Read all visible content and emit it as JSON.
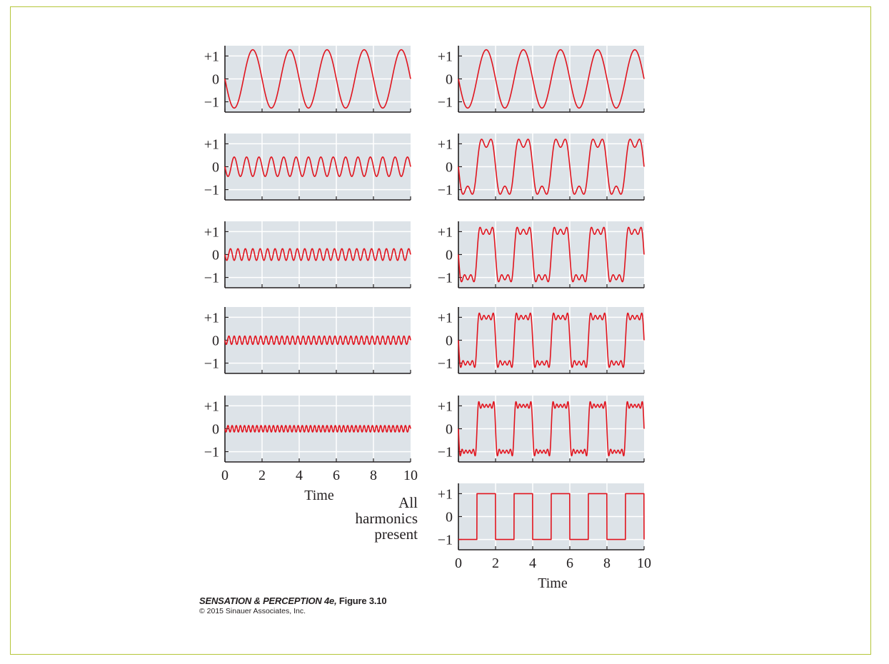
{
  "chart_data": {
    "type": "line",
    "panels_left": [
      {
        "harmonic": 1,
        "amplitude": 1.27,
        "frequency": 0.5,
        "ylim": [
          -1.45,
          1.45
        ],
        "xlim": [
          0,
          10
        ],
        "yticks": [
          "+1",
          "0",
          "−1"
        ],
        "show_x_axis": false
      },
      {
        "harmonic": 3,
        "amplitude": 0.42,
        "frequency": 1.5,
        "ylim": [
          -1.45,
          1.45
        ],
        "xlim": [
          0,
          10
        ],
        "yticks": [
          "+1",
          "0",
          "−1"
        ],
        "show_x_axis": false
      },
      {
        "harmonic": 5,
        "amplitude": 0.25,
        "frequency": 2.5,
        "ylim": [
          -1.45,
          1.45
        ],
        "xlim": [
          0,
          10
        ],
        "yticks": [
          "+1",
          "0",
          "−1"
        ],
        "show_x_axis": false
      },
      {
        "harmonic": 7,
        "amplitude": 0.18,
        "frequency": 3.5,
        "ylim": [
          -1.45,
          1.45
        ],
        "xlim": [
          0,
          10
        ],
        "yticks": [
          "+1",
          "0",
          "−1"
        ],
        "show_x_axis": false
      },
      {
        "harmonic": 9,
        "amplitude": 0.14,
        "frequency": 4.5,
        "ylim": [
          -1.45,
          1.45
        ],
        "xlim": [
          0,
          10
        ],
        "yticks": [
          "+1",
          "0",
          "−1"
        ],
        "show_x_axis": true,
        "xticks": [
          "0",
          "2",
          "4",
          "6",
          "8",
          "10"
        ],
        "xlabel": "Time"
      }
    ],
    "panels_right": [
      {
        "harmonics_summed": [
          1
        ],
        "ylim": [
          -1.45,
          1.45
        ],
        "xlim": [
          0,
          10
        ],
        "yticks": [
          "+1",
          "0",
          "−1"
        ],
        "show_x_axis": false
      },
      {
        "harmonics_summed": [
          1,
          3
        ],
        "ylim": [
          -1.45,
          1.45
        ],
        "xlim": [
          0,
          10
        ],
        "yticks": [
          "+1",
          "0",
          "−1"
        ],
        "show_x_axis": false
      },
      {
        "harmonics_summed": [
          1,
          3,
          5
        ],
        "ylim": [
          -1.45,
          1.45
        ],
        "xlim": [
          0,
          10
        ],
        "yticks": [
          "+1",
          "0",
          "−1"
        ],
        "show_x_axis": false
      },
      {
        "harmonics_summed": [
          1,
          3,
          5,
          7
        ],
        "ylim": [
          -1.45,
          1.45
        ],
        "xlim": [
          0,
          10
        ],
        "yticks": [
          "+1",
          "0",
          "−1"
        ],
        "show_x_axis": false
      },
      {
        "harmonics_summed": [
          1,
          3,
          5,
          7,
          9
        ],
        "ylim": [
          -1.45,
          1.45
        ],
        "xlim": [
          0,
          10
        ],
        "yticks": [
          "+1",
          "0",
          "−1"
        ],
        "show_x_axis": false
      },
      {
        "square_wave": true,
        "ylim": [
          -1.45,
          1.45
        ],
        "xlim": [
          0,
          10
        ],
        "yticks": [
          "+1",
          "0",
          "−1"
        ],
        "show_x_axis": true,
        "xticks": [
          "0",
          "2",
          "4",
          "6",
          "8",
          "10"
        ],
        "xlabel": "Time"
      }
    ],
    "square_label": [
      "All",
      "harmonics",
      "present"
    ],
    "line_color": "#e0141e",
    "panel_background": "#dde3e8",
    "grid": true
  },
  "caption": {
    "title_italic": "SENSATION & PERCEPTION 4e,",
    "title_rest": " Figure 3.10",
    "copyright": "© 2015 Sinauer Associates, Inc."
  }
}
